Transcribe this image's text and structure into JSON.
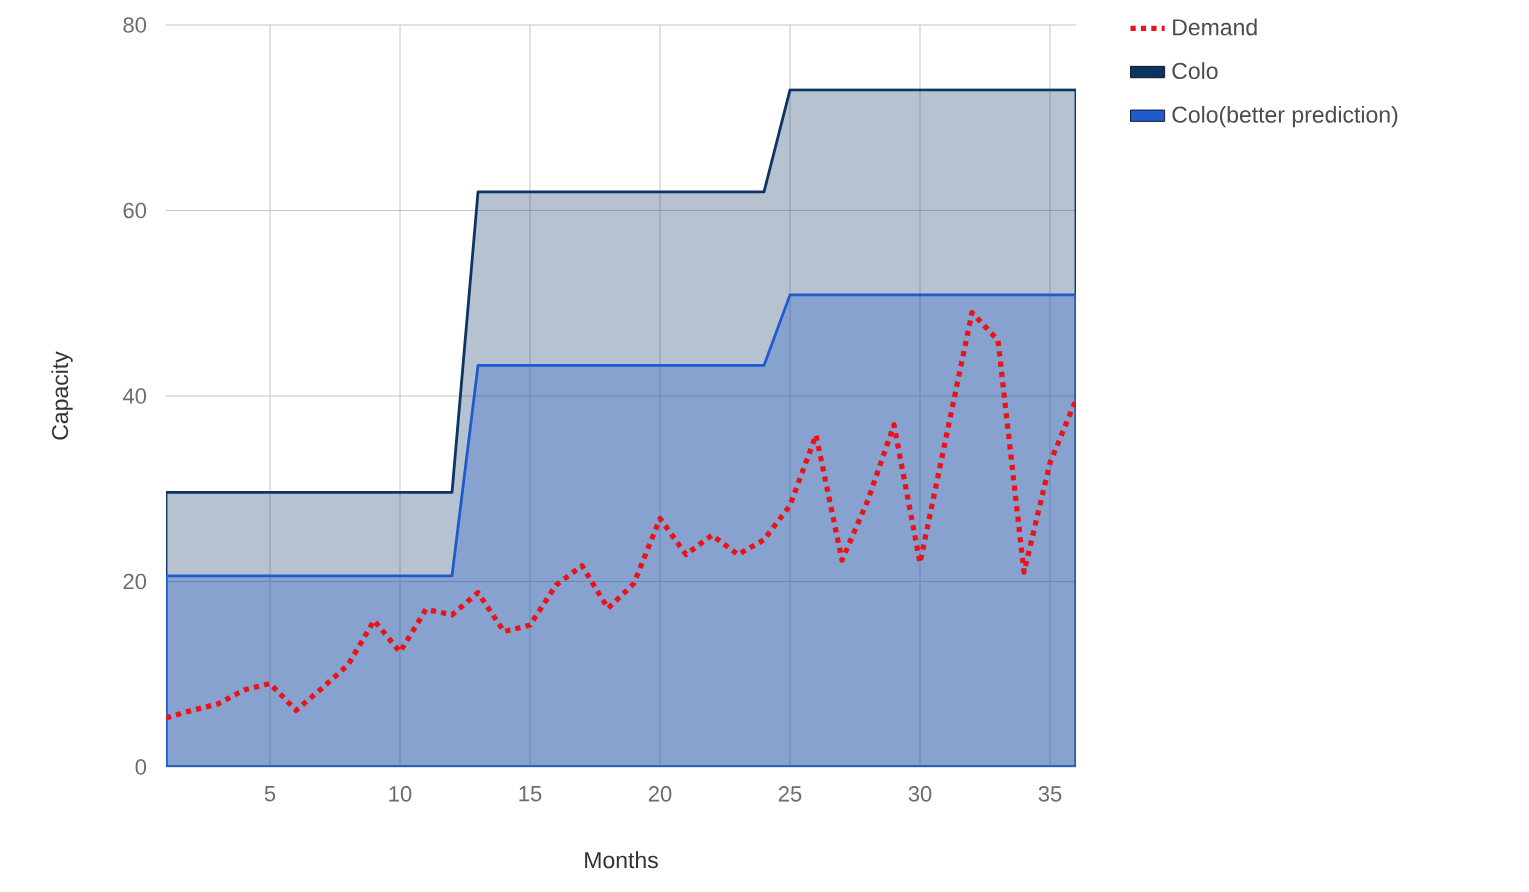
{
  "chart_data": {
    "type": "area",
    "xlabel": "Months",
    "ylabel": "Capacity",
    "x": [
      1,
      2,
      3,
      4,
      5,
      6,
      7,
      8,
      9,
      10,
      11,
      12,
      13,
      14,
      15,
      16,
      17,
      18,
      19,
      20,
      21,
      22,
      23,
      24,
      25,
      26,
      27,
      28,
      29,
      30,
      31,
      32,
      33,
      34,
      35,
      36
    ],
    "series": [
      {
        "name": "Demand",
        "type": "line",
        "line_style": "dotted",
        "color": "#e8141a",
        "values": [
          5.3,
          6.1,
          6.8,
          8.3,
          9,
          6.1,
          8.5,
          11,
          15.8,
          12.4,
          17,
          16.4,
          18.8,
          14.6,
          15.3,
          19.6,
          21.7,
          17.1,
          19.8,
          26.8,
          22.9,
          25,
          22.9,
          24.5,
          28.2,
          35.8,
          22.3,
          28.8,
          36.9,
          22,
          35.5,
          49,
          46,
          21,
          32.8,
          39.6
        ]
      },
      {
        "name": "Colo",
        "color": "#0d3564",
        "values": [
          29.6,
          29.6,
          29.6,
          29.6,
          29.6,
          29.6,
          29.6,
          29.6,
          29.6,
          29.6,
          29.6,
          29.6,
          62,
          62,
          62,
          62,
          62,
          62,
          62,
          62,
          62,
          62,
          62,
          62,
          73,
          73,
          73,
          73,
          73,
          73,
          73,
          73,
          73,
          73,
          73,
          73
        ]
      },
      {
        "name": "Colo(better prediction)",
        "color": "#1f5bcc",
        "values": [
          20.6,
          20.6,
          20.6,
          20.6,
          20.6,
          20.6,
          20.6,
          20.6,
          20.6,
          20.6,
          20.6,
          20.6,
          43.3,
          43.3,
          43.3,
          43.3,
          43.3,
          43.3,
          43.3,
          43.3,
          43.3,
          43.3,
          43.3,
          43.3,
          50.9,
          50.9,
          50.9,
          50.9,
          50.9,
          50.9,
          50.9,
          50.9,
          50.9,
          50.9,
          50.9,
          50.9
        ]
      }
    ],
    "xlim": [
      1,
      36
    ],
    "ylim": [
      0,
      80
    ],
    "xticks": [
      5,
      10,
      15,
      20,
      25,
      30,
      35
    ],
    "yticks": [
      0,
      20,
      40,
      60,
      80
    ],
    "grid": true,
    "legend": "top right",
    "marker": "none"
  }
}
